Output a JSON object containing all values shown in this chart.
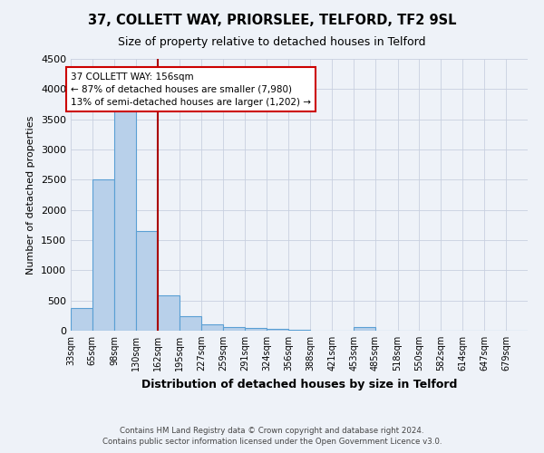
{
  "title": "37, COLLETT WAY, PRIORSLEE, TELFORD, TF2 9SL",
  "subtitle": "Size of property relative to detached houses in Telford",
  "xlabel": "Distribution of detached houses by size in Telford",
  "ylabel": "Number of detached properties",
  "footer_line1": "Contains HM Land Registry data © Crown copyright and database right 2024.",
  "footer_line2": "Contains public sector information licensed under the Open Government Licence v3.0.",
  "categories": [
    "33sqm",
    "65sqm",
    "98sqm",
    "130sqm",
    "162sqm",
    "195sqm",
    "227sqm",
    "259sqm",
    "291sqm",
    "324sqm",
    "356sqm",
    "388sqm",
    "421sqm",
    "453sqm",
    "485sqm",
    "518sqm",
    "550sqm",
    "582sqm",
    "614sqm",
    "647sqm",
    "679sqm"
  ],
  "values": [
    380,
    2500,
    3750,
    1650,
    580,
    240,
    110,
    60,
    40,
    25,
    15,
    5,
    5,
    55,
    5,
    0,
    0,
    0,
    0,
    0,
    0
  ],
  "bar_color": "#b8d0ea",
  "bar_edge_color": "#5a9fd4",
  "property_line_color": "#aa0000",
  "annotation_text_line1": "37 COLLETT WAY: 156sqm",
  "annotation_text_line2": "← 87% of detached houses are smaller (7,980)",
  "annotation_text_line3": "13% of semi-detached houses are larger (1,202) →",
  "annotation_box_color": "#ffffff",
  "annotation_box_edge_color": "#cc0000",
  "ylim": [
    0,
    4500
  ],
  "background_color": "#eef2f8",
  "grid_color": "#c8d0e0",
  "bin_width": 32
}
